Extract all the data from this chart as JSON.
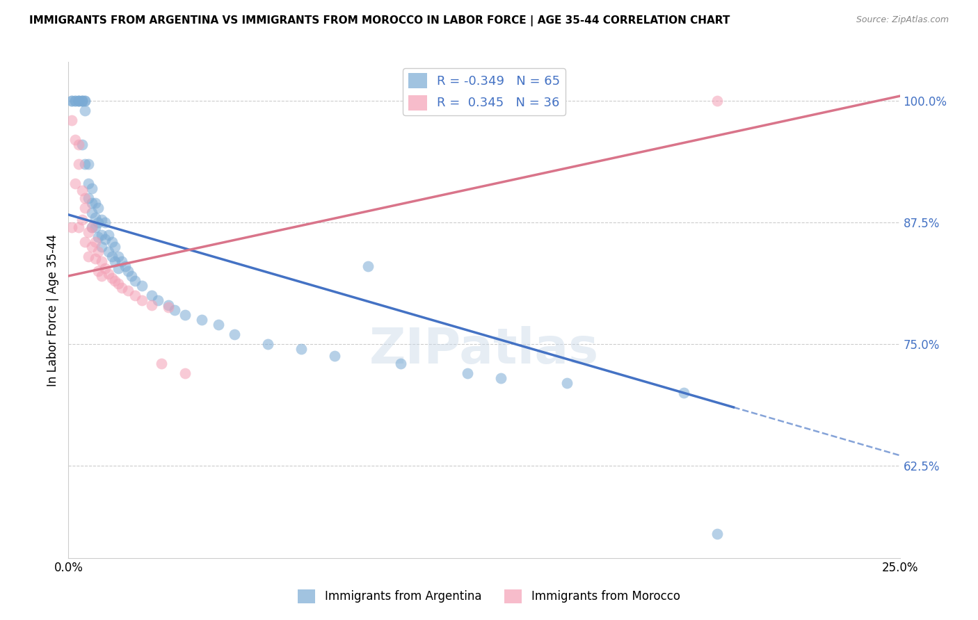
{
  "title": "IMMIGRANTS FROM ARGENTINA VS IMMIGRANTS FROM MOROCCO IN LABOR FORCE | AGE 35-44 CORRELATION CHART",
  "source": "Source: ZipAtlas.com",
  "ylabel": "In Labor Force | Age 35-44",
  "xlim": [
    0.0,
    0.25
  ],
  "ylim": [
    0.53,
    1.04
  ],
  "xticks": [
    0.0,
    0.05,
    0.1,
    0.15,
    0.2,
    0.25
  ],
  "ytick_positions": [
    0.625,
    0.75,
    0.875,
    1.0
  ],
  "ytick_labels": [
    "62.5%",
    "75.0%",
    "87.5%",
    "100.0%"
  ],
  "argentina_color": "#7aaad4",
  "morocco_color": "#f4a0b5",
  "argentina_R": -0.349,
  "argentina_N": 65,
  "morocco_R": 0.345,
  "morocco_N": 36,
  "argentina_line_color": "#4472c4",
  "morocco_line_color": "#d9748a",
  "arg_line_x0": 0.0,
  "arg_line_y0": 0.883,
  "arg_line_x1": 0.2,
  "arg_line_y1": 0.685,
  "arg_line_solid_end": 0.2,
  "arg_line_dashed_end": 0.25,
  "mor_line_x0": 0.0,
  "mor_line_y0": 0.82,
  "mor_line_x1": 0.25,
  "mor_line_y1": 1.005,
  "arg_points_x": [
    0.001,
    0.001,
    0.002,
    0.002,
    0.003,
    0.003,
    0.003,
    0.004,
    0.004,
    0.004,
    0.004,
    0.005,
    0.005,
    0.005,
    0.005,
    0.006,
    0.006,
    0.006,
    0.007,
    0.007,
    0.007,
    0.007,
    0.008,
    0.008,
    0.008,
    0.009,
    0.009,
    0.009,
    0.01,
    0.01,
    0.01,
    0.011,
    0.011,
    0.012,
    0.012,
    0.013,
    0.013,
    0.014,
    0.014,
    0.015,
    0.015,
    0.016,
    0.017,
    0.018,
    0.019,
    0.02,
    0.022,
    0.025,
    0.027,
    0.03,
    0.032,
    0.035,
    0.04,
    0.045,
    0.05,
    0.06,
    0.07,
    0.08,
    0.1,
    0.12,
    0.09,
    0.13,
    0.15,
    0.185,
    0.195
  ],
  "arg_points_y": [
    1.0,
    1.0,
    1.0,
    1.0,
    1.0,
    1.0,
    1.0,
    1.0,
    1.0,
    1.0,
    0.955,
    1.0,
    1.0,
    0.99,
    0.935,
    0.9,
    0.915,
    0.935,
    0.91,
    0.895,
    0.885,
    0.87,
    0.895,
    0.88,
    0.87,
    0.89,
    0.875,
    0.86,
    0.878,
    0.862,
    0.85,
    0.875,
    0.858,
    0.862,
    0.845,
    0.855,
    0.84,
    0.85,
    0.835,
    0.84,
    0.828,
    0.835,
    0.83,
    0.825,
    0.82,
    0.815,
    0.81,
    0.8,
    0.795,
    0.79,
    0.785,
    0.78,
    0.775,
    0.77,
    0.76,
    0.75,
    0.745,
    0.738,
    0.73,
    0.72,
    0.83,
    0.715,
    0.71,
    0.7,
    0.555
  ],
  "mor_points_x": [
    0.001,
    0.001,
    0.002,
    0.002,
    0.003,
    0.003,
    0.003,
    0.004,
    0.004,
    0.005,
    0.005,
    0.005,
    0.006,
    0.006,
    0.007,
    0.007,
    0.008,
    0.008,
    0.009,
    0.009,
    0.01,
    0.01,
    0.011,
    0.012,
    0.013,
    0.014,
    0.015,
    0.016,
    0.018,
    0.02,
    0.022,
    0.025,
    0.028,
    0.03,
    0.035,
    0.195
  ],
  "mor_points_y": [
    0.98,
    0.87,
    0.96,
    0.915,
    0.955,
    0.935,
    0.87,
    0.908,
    0.878,
    0.9,
    0.89,
    0.855,
    0.865,
    0.84,
    0.87,
    0.85,
    0.855,
    0.838,
    0.845,
    0.825,
    0.835,
    0.82,
    0.828,
    0.822,
    0.818,
    0.815,
    0.812,
    0.808,
    0.805,
    0.8,
    0.795,
    0.79,
    0.73,
    0.788,
    0.72,
    1.0
  ]
}
